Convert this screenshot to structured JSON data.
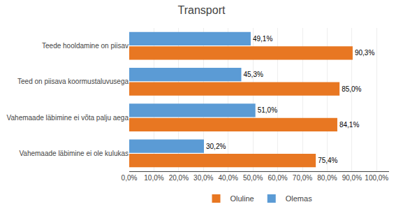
{
  "chart_data": {
    "type": "bar",
    "orientation": "horizontal",
    "title": "Transport",
    "categories": [
      "Vahemaade läbimine ei ole kulukas",
      "Vahemaade läbimine ei võta palju aega",
      "Teed on piisava koormustaluvusega",
      "Teede hooldamine on piisav"
    ],
    "series": [
      {
        "name": "Oluline",
        "color": "#E87722",
        "values": [
          75.4,
          84.1,
          85.0,
          90.3
        ],
        "value_labels": [
          "75,4%",
          "84,1%",
          "85,0%",
          "90,3%"
        ]
      },
      {
        "name": "Olemas",
        "color": "#5B9BD5",
        "values": [
          30.2,
          51.0,
          45.3,
          49.1
        ],
        "value_labels": [
          "30,2%",
          "51,0%",
          "45,3%",
          "49,1%"
        ]
      }
    ],
    "xlim": [
      0,
      105
    ],
    "xticks": [
      {
        "value": 0,
        "label": "0,0%"
      },
      {
        "value": 10,
        "label": "10,0%"
      },
      {
        "value": 20,
        "label": "20,0%"
      },
      {
        "value": 30,
        "label": "30,0%"
      },
      {
        "value": 40,
        "label": "40,0%"
      },
      {
        "value": 50,
        "label": "50,0%"
      },
      {
        "value": 60,
        "label": "60,0%"
      },
      {
        "value": 70,
        "label": "70,0%"
      },
      {
        "value": 80,
        "label": "80,0%"
      },
      {
        "value": 90,
        "label": "90,0%"
      },
      {
        "value": 100,
        "label": "100,0%"
      }
    ],
    "grid": true,
    "legend": "bottom",
    "data_labels": true
  }
}
